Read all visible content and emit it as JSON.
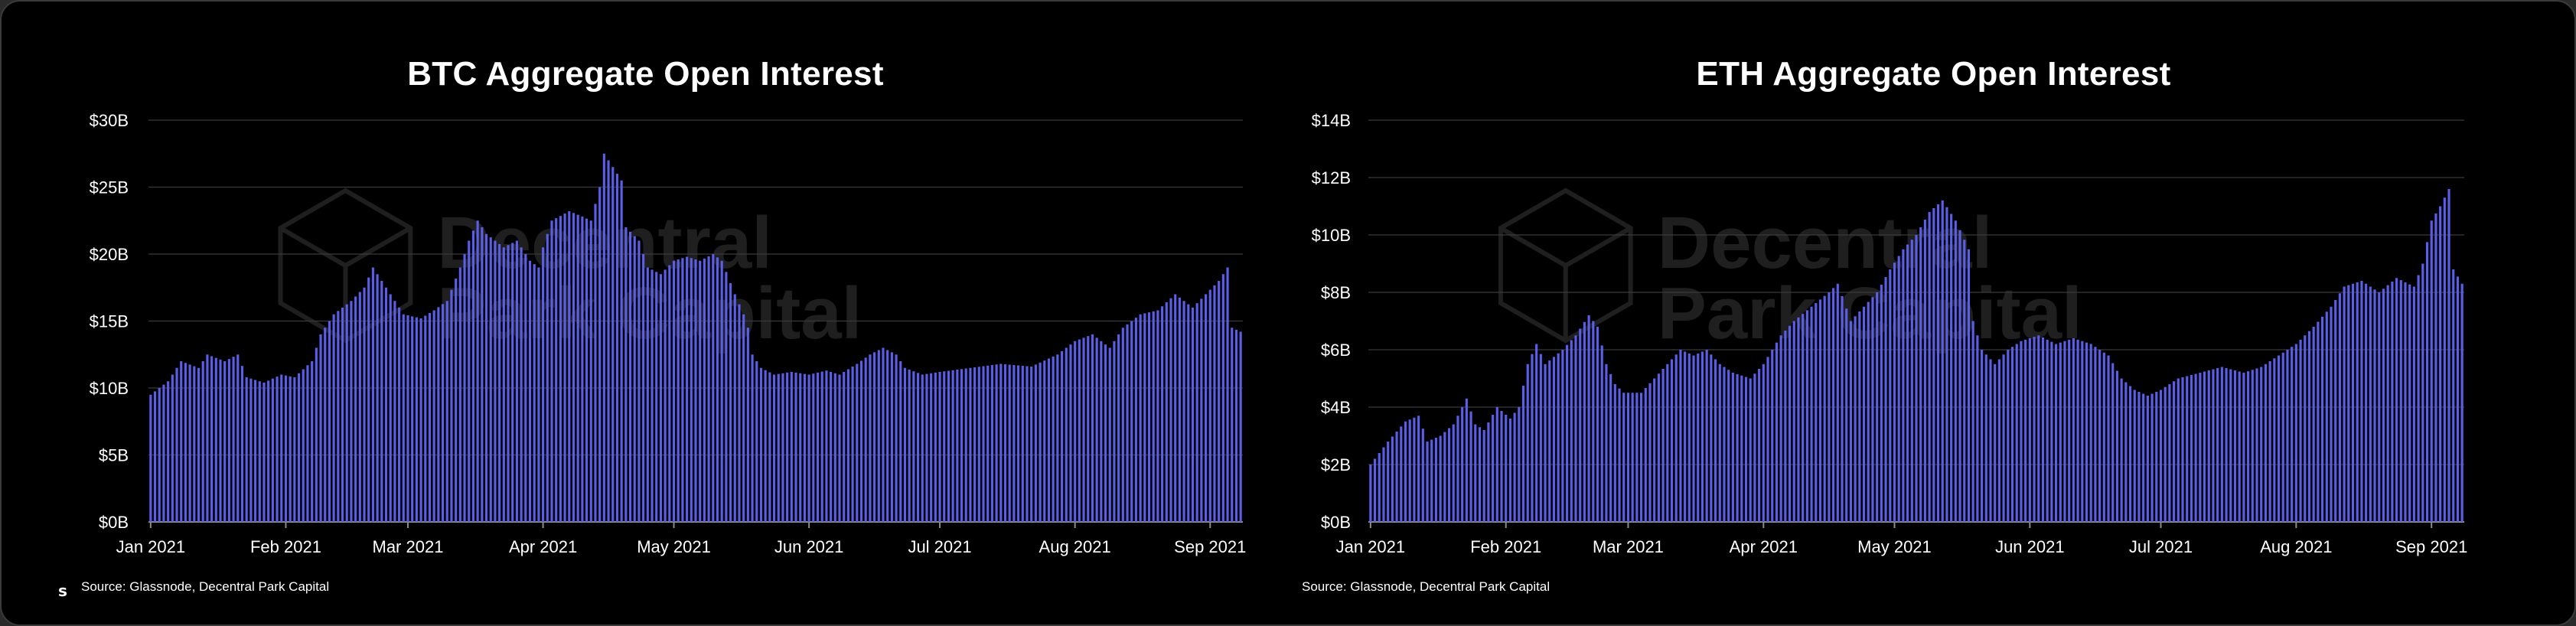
{
  "chart_data": [
    {
      "type": "bar",
      "title": "BTC Aggregate Open Interest",
      "xlabel": "",
      "ylabel": "",
      "ylim": [
        0,
        30
      ],
      "ytick_values": [
        0,
        5,
        10,
        15,
        20,
        25,
        30
      ],
      "ytick_labels": [
        "$0B",
        "$5B",
        "$10B",
        "$15B",
        "$20B",
        "$25B",
        "$30B"
      ],
      "xlim": [
        "2021-01-01",
        "2021-09-08"
      ],
      "xtick_dates": [
        "2021-01-01",
        "2021-02-01",
        "2021-03-01",
        "2021-04-01",
        "2021-05-01",
        "2021-06-01",
        "2021-07-01",
        "2021-08-01",
        "2021-09-01"
      ],
      "xtick_labels": [
        "Jan 2021",
        "Feb 2021",
        "Mar 2021",
        "Apr 2021",
        "May 2021",
        "Jun 2021",
        "Jul 2021",
        "Aug 2021",
        "Sep 2021"
      ],
      "grid": true,
      "bar_color": "#5a5ee8",
      "source": "Source: Glassnode, Decentral Park Capital",
      "watermark": [
        "Decentral",
        "Park Capital"
      ],
      "corner_mark": "s",
      "series": [
        {
          "anchors": [
            [
              "2021-01-01",
              9.5
            ],
            [
              "2021-01-05",
              10.5
            ],
            [
              "2021-01-08",
              12.0
            ],
            [
              "2021-01-12",
              11.5
            ],
            [
              "2021-01-14",
              12.5
            ],
            [
              "2021-01-18",
              12.0
            ],
            [
              "2021-01-21",
              12.5
            ],
            [
              "2021-01-23",
              10.8
            ],
            [
              "2021-01-27",
              10.4
            ],
            [
              "2021-01-31",
              11.0
            ],
            [
              "2021-02-03",
              10.8
            ],
            [
              "2021-02-07",
              12.0
            ],
            [
              "2021-02-09",
              14.0
            ],
            [
              "2021-02-12",
              15.5
            ],
            [
              "2021-02-16",
              16.5
            ],
            [
              "2021-02-19",
              17.5
            ],
            [
              "2021-02-21",
              19.0
            ],
            [
              "2021-02-23",
              18.0
            ],
            [
              "2021-02-25",
              17.0
            ],
            [
              "2021-02-28",
              15.5
            ],
            [
              "2021-03-04",
              15.2
            ],
            [
              "2021-03-07",
              15.8
            ],
            [
              "2021-03-10",
              16.5
            ],
            [
              "2021-03-13",
              19.0
            ],
            [
              "2021-03-15",
              21.0
            ],
            [
              "2021-03-17",
              22.5
            ],
            [
              "2021-03-19",
              21.5
            ],
            [
              "2021-03-23",
              20.5
            ],
            [
              "2021-03-26",
              21.0
            ],
            [
              "2021-03-29",
              19.5
            ],
            [
              "2021-03-31",
              19.0
            ],
            [
              "2021-04-01",
              20.5
            ],
            [
              "2021-04-03",
              22.5
            ],
            [
              "2021-04-07",
              23.2
            ],
            [
              "2021-04-10",
              22.8
            ],
            [
              "2021-04-12",
              22.5
            ],
            [
              "2021-04-14",
              25.0
            ],
            [
              "2021-04-15",
              27.5
            ],
            [
              "2021-04-17",
              26.5
            ],
            [
              "2021-04-19",
              25.5
            ],
            [
              "2021-04-20",
              22.0
            ],
            [
              "2021-04-23",
              21.0
            ],
            [
              "2021-04-25",
              19.0
            ],
            [
              "2021-04-28",
              18.5
            ],
            [
              "2021-05-01",
              19.5
            ],
            [
              "2021-05-04",
              19.8
            ],
            [
              "2021-05-07",
              19.5
            ],
            [
              "2021-05-10",
              20.0
            ],
            [
              "2021-05-12",
              19.5
            ],
            [
              "2021-05-15",
              17.0
            ],
            [
              "2021-05-17",
              15.5
            ],
            [
              "2021-05-18",
              14.5
            ],
            [
              "2021-05-19",
              12.5
            ],
            [
              "2021-05-21",
              11.5
            ],
            [
              "2021-05-24",
              11.0
            ],
            [
              "2021-05-28",
              11.2
            ],
            [
              "2021-06-01",
              11.0
            ],
            [
              "2021-06-05",
              11.3
            ],
            [
              "2021-06-08",
              11.0
            ],
            [
              "2021-06-12",
              11.8
            ],
            [
              "2021-06-15",
              12.5
            ],
            [
              "2021-06-18",
              13.0
            ],
            [
              "2021-06-21",
              12.5
            ],
            [
              "2021-06-23",
              11.5
            ],
            [
              "2021-06-27",
              11.0
            ],
            [
              "2021-07-01",
              11.2
            ],
            [
              "2021-07-08",
              11.5
            ],
            [
              "2021-07-15",
              11.8
            ],
            [
              "2021-07-22",
              11.6
            ],
            [
              "2021-07-28",
              12.5
            ],
            [
              "2021-08-01",
              13.5
            ],
            [
              "2021-08-05",
              14.0
            ],
            [
              "2021-08-09",
              13.0
            ],
            [
              "2021-08-12",
              14.5
            ],
            [
              "2021-08-16",
              15.5
            ],
            [
              "2021-08-20",
              15.8
            ],
            [
              "2021-08-24",
              17.0
            ],
            [
              "2021-08-28",
              16.0
            ],
            [
              "2021-08-31",
              17.0
            ],
            [
              "2021-09-03",
              18.0
            ],
            [
              "2021-09-05",
              19.0
            ],
            [
              "2021-09-06",
              14.5
            ],
            [
              "2021-09-08",
              14.2
            ]
          ]
        }
      ]
    },
    {
      "type": "bar",
      "title": "ETH Aggregate Open Interest",
      "xlabel": "",
      "ylabel": "",
      "ylim": [
        0,
        14
      ],
      "ytick_values": [
        0,
        2,
        4,
        6,
        8,
        10,
        12,
        14
      ],
      "ytick_labels": [
        "$0B",
        "$2B",
        "$4B",
        "$6B",
        "$8B",
        "$10B",
        "$12B",
        "$14B"
      ],
      "xlim": [
        "2021-01-01",
        "2021-09-08"
      ],
      "xtick_dates": [
        "2021-01-01",
        "2021-02-01",
        "2021-03-01",
        "2021-04-01",
        "2021-05-01",
        "2021-06-01",
        "2021-07-01",
        "2021-08-01",
        "2021-09-01"
      ],
      "xtick_labels": [
        "Jan 2021",
        "Feb 2021",
        "Mar 2021",
        "Apr 2021",
        "May 2021",
        "Jun 2021",
        "Jul 2021",
        "Aug 2021",
        "Sep 2021"
      ],
      "grid": true,
      "bar_color": "#5a5ee8",
      "source": "Source: Glassnode, Decentral Park Capital",
      "watermark": [
        "Decentral",
        "Park Capital"
      ],
      "series": [
        {
          "anchors": [
            [
              "2021-01-01",
              2.0
            ],
            [
              "2021-01-05",
              2.8
            ],
            [
              "2021-01-09",
              3.5
            ],
            [
              "2021-01-12",
              3.7
            ],
            [
              "2021-01-14",
              2.8
            ],
            [
              "2021-01-17",
              3.0
            ],
            [
              "2021-01-20",
              3.4
            ],
            [
              "2021-01-23",
              4.3
            ],
            [
              "2021-01-25",
              3.4
            ],
            [
              "2021-01-27",
              3.2
            ],
            [
              "2021-01-30",
              4.0
            ],
            [
              "2021-02-02",
              3.6
            ],
            [
              "2021-02-04",
              4.0
            ],
            [
              "2021-02-06",
              5.5
            ],
            [
              "2021-02-08",
              6.2
            ],
            [
              "2021-02-10",
              5.5
            ],
            [
              "2021-02-14",
              6.0
            ],
            [
              "2021-02-17",
              6.5
            ],
            [
              "2021-02-20",
              7.2
            ],
            [
              "2021-02-22",
              6.8
            ],
            [
              "2021-02-24",
              5.5
            ],
            [
              "2021-02-26",
              4.8
            ],
            [
              "2021-02-28",
              4.5
            ],
            [
              "2021-03-04",
              4.5
            ],
            [
              "2021-03-07",
              5.0
            ],
            [
              "2021-03-10",
              5.5
            ],
            [
              "2021-03-13",
              6.0
            ],
            [
              "2021-03-16",
              5.8
            ],
            [
              "2021-03-19",
              6.0
            ],
            [
              "2021-03-22",
              5.5
            ],
            [
              "2021-03-25",
              5.2
            ],
            [
              "2021-03-29",
              5.0
            ],
            [
              "2021-04-01",
              5.5
            ],
            [
              "2021-04-05",
              6.5
            ],
            [
              "2021-04-08",
              7.0
            ],
            [
              "2021-04-12",
              7.5
            ],
            [
              "2021-04-16",
              8.0
            ],
            [
              "2021-04-18",
              8.3
            ],
            [
              "2021-04-21",
              7.0
            ],
            [
              "2021-04-24",
              7.5
            ],
            [
              "2021-04-27",
              8.0
            ],
            [
              "2021-04-30",
              8.8
            ],
            [
              "2021-05-03",
              9.5
            ],
            [
              "2021-05-06",
              10.0
            ],
            [
              "2021-05-09",
              10.8
            ],
            [
              "2021-05-12",
              11.2
            ],
            [
              "2021-05-15",
              10.5
            ],
            [
              "2021-05-18",
              9.5
            ],
            [
              "2021-05-19",
              7.0
            ],
            [
              "2021-05-21",
              6.0
            ],
            [
              "2021-05-24",
              5.5
            ],
            [
              "2021-05-27",
              6.0
            ],
            [
              "2021-05-30",
              6.3
            ],
            [
              "2021-06-03",
              6.5
            ],
            [
              "2021-06-07",
              6.2
            ],
            [
              "2021-06-11",
              6.4
            ],
            [
              "2021-06-15",
              6.2
            ],
            [
              "2021-06-19",
              5.8
            ],
            [
              "2021-06-22",
              5.0
            ],
            [
              "2021-06-25",
              4.6
            ],
            [
              "2021-06-28",
              4.4
            ],
            [
              "2021-07-01",
              4.6
            ],
            [
              "2021-07-05",
              5.0
            ],
            [
              "2021-07-10",
              5.2
            ],
            [
              "2021-07-15",
              5.4
            ],
            [
              "2021-07-20",
              5.2
            ],
            [
              "2021-07-24",
              5.4
            ],
            [
              "2021-07-28",
              5.8
            ],
            [
              "2021-08-01",
              6.2
            ],
            [
              "2021-08-05",
              6.8
            ],
            [
              "2021-08-09",
              7.5
            ],
            [
              "2021-08-12",
              8.2
            ],
            [
              "2021-08-16",
              8.4
            ],
            [
              "2021-08-20",
              8.0
            ],
            [
              "2021-08-24",
              8.5
            ],
            [
              "2021-08-28",
              8.2
            ],
            [
              "2021-08-30",
              9.0
            ],
            [
              "2021-09-01",
              10.5
            ],
            [
              "2021-09-03",
              11.0
            ],
            [
              "2021-09-05",
              11.6
            ],
            [
              "2021-09-06",
              8.8
            ],
            [
              "2021-09-08",
              8.3
            ]
          ]
        }
      ]
    }
  ]
}
